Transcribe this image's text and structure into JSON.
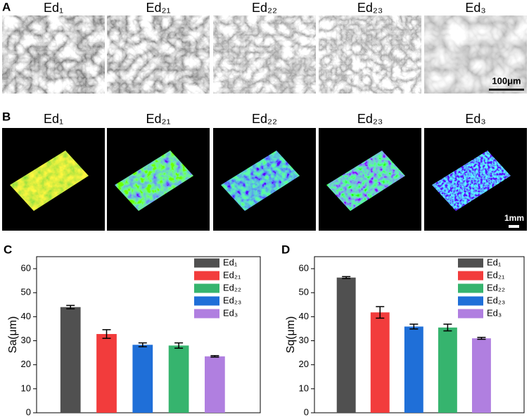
{
  "panel_a": {
    "label": "A",
    "titles": [
      "Ed₁",
      "Ed₂₁",
      "Ed₂₂",
      "Ed₂₃",
      "Ed₃"
    ],
    "scale_bar": "100μm"
  },
  "panel_b": {
    "label": "B",
    "titles": [
      "Ed₁",
      "Ed₂₁",
      "Ed₂₂",
      "Ed₂₃",
      "Ed₃"
    ],
    "scale_bar": "1mm"
  },
  "chart_data": [
    {
      "type": "bar",
      "label": "C",
      "y_label": "Sa(μm)",
      "ylim": [
        0,
        65
      ],
      "yticks": [
        0,
        10,
        20,
        30,
        40,
        50,
        60
      ],
      "legend": "upper right",
      "series": [
        {
          "name": "Ed₁",
          "color": "#505050",
          "x": [
            1
          ],
          "values": [
            44
          ],
          "errors": [
            0.7
          ]
        },
        {
          "name": "Ed₂₁",
          "color": "#f23c3c",
          "x": [
            2
          ],
          "values": [
            32.8
          ],
          "errors": [
            1.8
          ]
        },
        {
          "name": "Ed₂₂",
          "color": "#36b46e",
          "x": [
            4
          ],
          "values": [
            28
          ],
          "errors": [
            1.1
          ]
        },
        {
          "name": "Ed₂₃",
          "color": "#1f6fd8",
          "x": [
            3
          ],
          "values": [
            28.3
          ],
          "errors": [
            0.8
          ]
        },
        {
          "name": "Ed₃",
          "color": "#b07fe0",
          "x": [
            5
          ],
          "values": [
            23.5
          ],
          "errors": [
            0.3
          ]
        }
      ]
    },
    {
      "type": "bar",
      "label": "D",
      "y_label": "Sq(μm)",
      "ylim": [
        0,
        65
      ],
      "yticks": [
        0,
        10,
        20,
        30,
        40,
        50,
        60
      ],
      "legend": "upper right",
      "series": [
        {
          "name": "Ed₁",
          "color": "#505050",
          "x": [
            1
          ],
          "values": [
            56.3
          ],
          "errors": [
            0.4
          ]
        },
        {
          "name": "Ed₂₁",
          "color": "#f23c3c",
          "x": [
            2
          ],
          "values": [
            41.8
          ],
          "errors": [
            2.4
          ]
        },
        {
          "name": "Ed₂₂",
          "color": "#36b46e",
          "x": [
            4
          ],
          "values": [
            35.5
          ],
          "errors": [
            1.4
          ]
        },
        {
          "name": "Ed₂₃",
          "color": "#1f6fd8",
          "x": [
            3
          ],
          "values": [
            35.9
          ],
          "errors": [
            1
          ]
        },
        {
          "name": "Ed₃",
          "color": "#b07fe0",
          "x": [
            5
          ],
          "values": [
            31
          ],
          "errors": [
            0.4
          ]
        }
      ]
    }
  ]
}
